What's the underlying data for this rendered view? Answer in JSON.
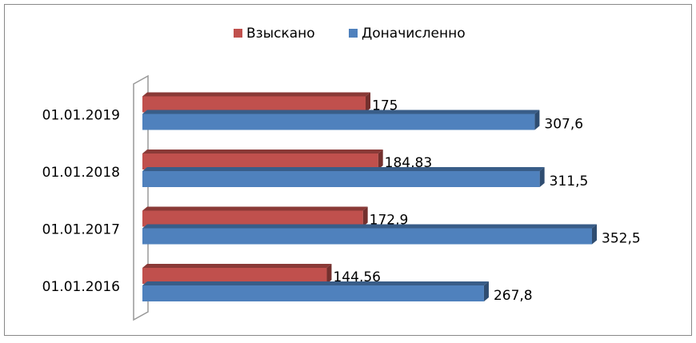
{
  "chart_data": {
    "type": "bar3d_horizontal",
    "categories": [
      "01.01.2016",
      "01.01.2017",
      "01.01.2018",
      "01.01.2019"
    ],
    "series": [
      {
        "name": "Взыскано",
        "color": "#c0504d",
        "values": [
          144.56,
          172.9,
          184.83,
          175
        ],
        "value_labels": [
          "144,56",
          "172,9",
          "184,83",
          "175"
        ]
      },
      {
        "name": "Доначисленно",
        "color": "#4f81bd",
        "values": [
          267.8,
          352.5,
          311.5,
          307.6
        ],
        "value_labels": [
          "267,8",
          "352,5",
          "311,5",
          "307,6"
        ]
      }
    ],
    "legend": "top"
  }
}
